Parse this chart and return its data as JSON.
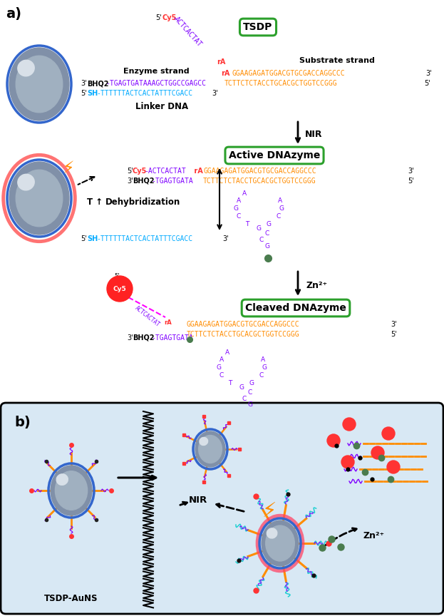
{
  "panel_a_label": "a)",
  "panel_b_label": "b)",
  "tsdp_label": "TSDP",
  "nir_label": "NIR",
  "zn2_label": "Zn²⁺",
  "active_dnazyme": "Active DNAzyme",
  "cleaved_dnazyme": "Cleaved DNAzyme",
  "dehybridization": "Dehybridization",
  "t_up": "T ↑",
  "enzyme_strand": "Enzyme strand",
  "substrate_strand": "Substrate strand",
  "linker_dna": "Linker DNA",
  "tsdp_auNS": "TSDP-AuNS",
  "bg_b": "#d8e8f4",
  "green_edge": "#2ca02c",
  "purple": "#7f00ff",
  "orange": "#ff8c00",
  "red": "#ff3333",
  "cyan": "#00aaff",
  "dark_green": "#4a7c4e",
  "gray_ns": "#8090a8",
  "gray_ns2": "#a0b0c0",
  "blue_ring": "#3366cc",
  "pink_glow": "#ff4466"
}
